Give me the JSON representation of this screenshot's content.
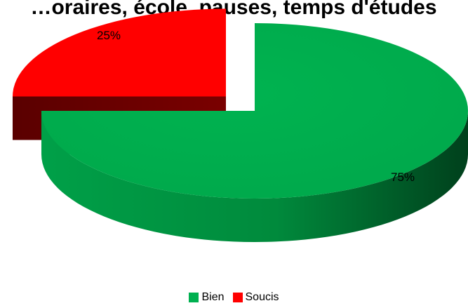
{
  "chart_data": {
    "type": "pie",
    "title": "…oraires, école, pauses, temps d'études",
    "categories": [
      "Bien",
      "Soucis"
    ],
    "values": [
      75,
      25
    ],
    "data_labels": [
      "75%",
      "25%"
    ],
    "colors": [
      "#00b050",
      "#ff0000"
    ],
    "style": "3d-exploded",
    "legend": "bottom"
  }
}
